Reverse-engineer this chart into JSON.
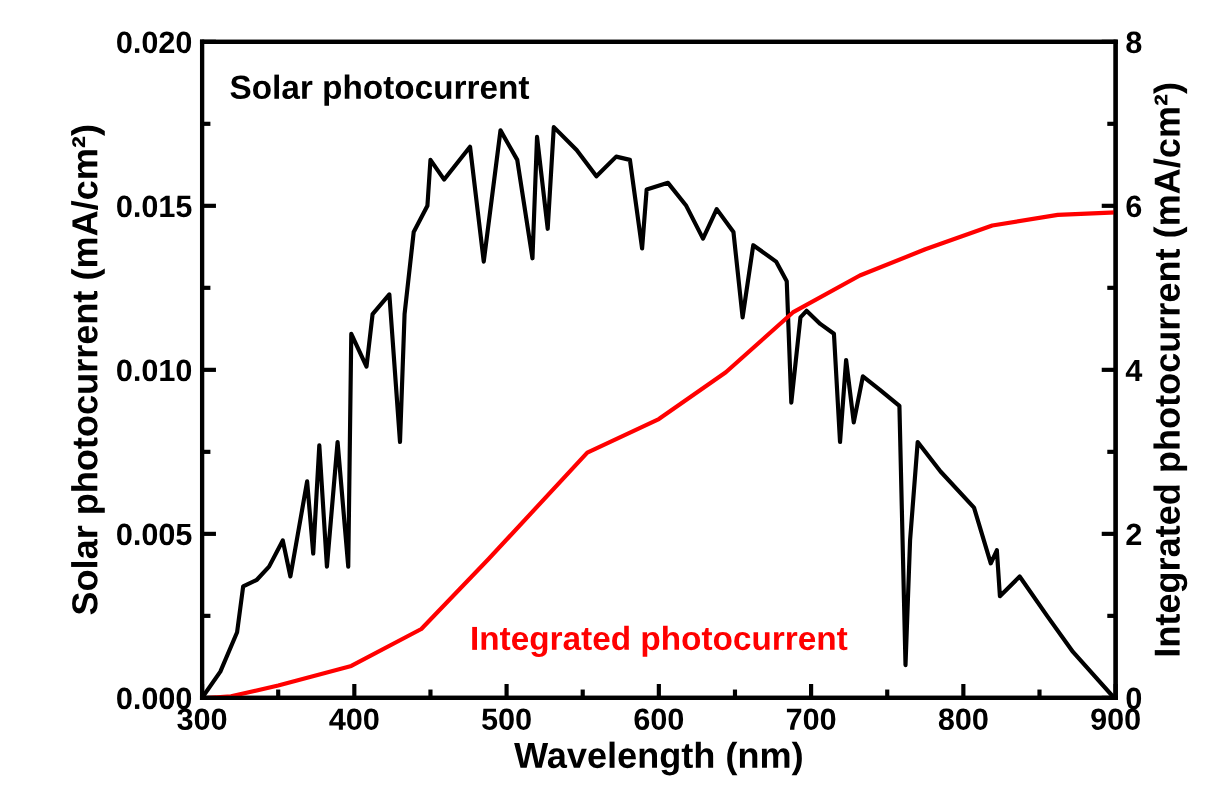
{
  "chart_data": {
    "type": "line",
    "xlabel": "Wavelength (nm)",
    "ylabel": "Solar photocurrent (mA/cm²)",
    "y2label": "Integrated photocurrent (mA/cm²)",
    "xlim": [
      300,
      900
    ],
    "xticks": [
      300,
      400,
      500,
      600,
      700,
      800,
      900
    ],
    "ylim": [
      0,
      0.02
    ],
    "yticks": [
      {
        "value": 0,
        "label": "0.000"
      },
      {
        "value": 0.005,
        "label": "0.005"
      },
      {
        "value": 0.01,
        "label": "0.010"
      },
      {
        "value": 0.015,
        "label": "0.015"
      },
      {
        "value": 0.02,
        "label": "0.020"
      }
    ],
    "y2lim": [
      0,
      8
    ],
    "y2ticks": [
      0,
      2,
      4,
      6,
      8
    ],
    "legend": false,
    "grid": false,
    "series": [
      {
        "name": "Solar photocurrent",
        "color": "#000000",
        "x": [
          300,
          312,
          323,
          327,
          336,
          344,
          353,
          358,
          369,
          373,
          377,
          382,
          389,
          396,
          398,
          408,
          412,
          423,
          430,
          433,
          439,
          448,
          450,
          459,
          476,
          485,
          496,
          507,
          517,
          520,
          527,
          531,
          546,
          559,
          572,
          581,
          589,
          592,
          606,
          618,
          629,
          638,
          649,
          655,
          662,
          677,
          684,
          687,
          693,
          697,
          706,
          715,
          719,
          723,
          728,
          734,
          745,
          758,
          762,
          765,
          770,
          785,
          807,
          818,
          822,
          824,
          837,
          855,
          872,
          899
        ],
        "values": [
          0,
          0.0008,
          0.002,
          0.0034,
          0.0036,
          0.004,
          0.0048,
          0.0037,
          0.0066,
          0.0044,
          0.0077,
          0.004,
          0.0078,
          0.004,
          0.0111,
          0.0101,
          0.0117,
          0.0123,
          0.0078,
          0.0117,
          0.0142,
          0.015,
          0.0164,
          0.0158,
          0.0168,
          0.0133,
          0.0173,
          0.0164,
          0.0134,
          0.0171,
          0.0143,
          0.0174,
          0.0167,
          0.0159,
          0.0165,
          0.0164,
          0.0137,
          0.0155,
          0.0157,
          0.015,
          0.014,
          0.0149,
          0.0142,
          0.0116,
          0.0138,
          0.0133,
          0.0127,
          0.009,
          0.0116,
          0.0118,
          0.0114,
          0.0111,
          0.0078,
          0.0103,
          0.0084,
          0.0098,
          0.0094,
          0.0089,
          0.001,
          0.0048,
          0.0078,
          0.0069,
          0.0058,
          0.0041,
          0.0045,
          0.0031,
          0.0037,
          0.0025,
          0.0014,
          0
        ]
      },
      {
        "name": "Integrated photocurrent",
        "color": "#ff0000",
        "axis": "y2",
        "x": [
          305,
          319,
          350,
          398,
          444,
          488,
          553,
          600,
          644,
          688,
          732,
          775,
          819,
          862,
          899
        ],
        "values": [
          0,
          0.02,
          0.15,
          0.39,
          0.84,
          1.69,
          2.99,
          3.4,
          3.97,
          4.7,
          5.15,
          5.47,
          5.76,
          5.89,
          5.92
        ]
      }
    ]
  }
}
